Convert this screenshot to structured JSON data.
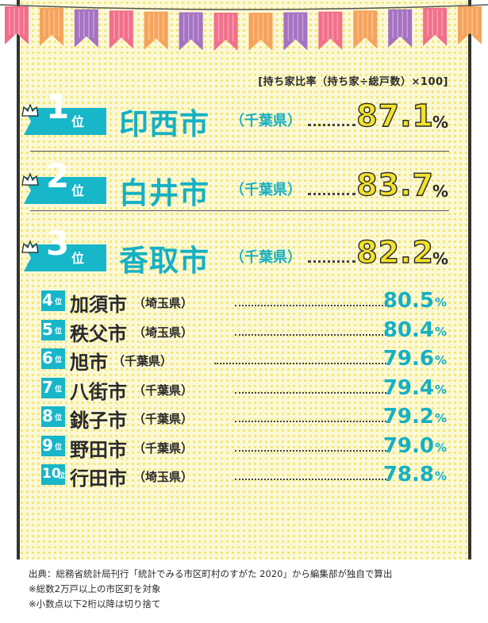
{
  "unit_note": "[持ち家比率（持ち家÷総戸数）×100]",
  "percent_sign": "%",
  "colors": {
    "accent": "#17b6c9",
    "highlight": "#f2e22a",
    "background": "#fbf8d8",
    "dots": "#f2e55a",
    "pennants": [
      "#f26f8b",
      "#f6a35b",
      "#a572c3"
    ]
  },
  "chart_data": {
    "type": "table",
    "title": "",
    "xlabel": "",
    "ylabel": "",
    "categories": [
      "印西市",
      "白井市",
      "香取市",
      "加須市",
      "秩父市",
      "旭市",
      "八街市",
      "銚子市",
      "野田市",
      "行田市"
    ],
    "values": [
      87.1,
      83.7,
      82.2,
      80.5,
      80.4,
      79.6,
      79.4,
      79.2,
      79.0,
      78.8
    ],
    "rows": [
      {
        "rank": "1",
        "rank_suffix": "位",
        "city": "印西市",
        "prefecture": "（千葉県）",
        "value": "87.1"
      },
      {
        "rank": "2",
        "rank_suffix": "位",
        "city": "白井市",
        "prefecture": "（千葉県）",
        "value": "83.7"
      },
      {
        "rank": "3",
        "rank_suffix": "位",
        "city": "香取市",
        "prefecture": "（千葉県）",
        "value": "82.2"
      },
      {
        "rank": "4",
        "rank_suffix": "位",
        "city": "加須市",
        "prefecture": "（埼玉県）",
        "value": "80.5"
      },
      {
        "rank": "5",
        "rank_suffix": "位",
        "city": "秩父市",
        "prefecture": "（埼玉県）",
        "value": "80.4"
      },
      {
        "rank": "6",
        "rank_suffix": "位",
        "city": "旭市",
        "prefecture": "（千葉県）",
        "value": "79.6"
      },
      {
        "rank": "7",
        "rank_suffix": "位",
        "city": "八街市",
        "prefecture": "（千葉県）",
        "value": "79.4"
      },
      {
        "rank": "8",
        "rank_suffix": "位",
        "city": "銚子市",
        "prefecture": "（千葉県）",
        "value": "79.2"
      },
      {
        "rank": "9",
        "rank_suffix": "位",
        "city": "野田市",
        "prefecture": "（千葉県）",
        "value": "79.0"
      },
      {
        "rank": "10",
        "rank_suffix": "位",
        "city": "行田市",
        "prefecture": "（埼玉県）",
        "value": "78.8"
      }
    ]
  },
  "notes": [
    "出典：総務省統計局刊行「統計でみる市区町村のすがた 2020」から編集部が独自で算出",
    "※総数2万戸以上の市区町を対象",
    "※小数点以下2桁以降は切り捨て"
  ]
}
